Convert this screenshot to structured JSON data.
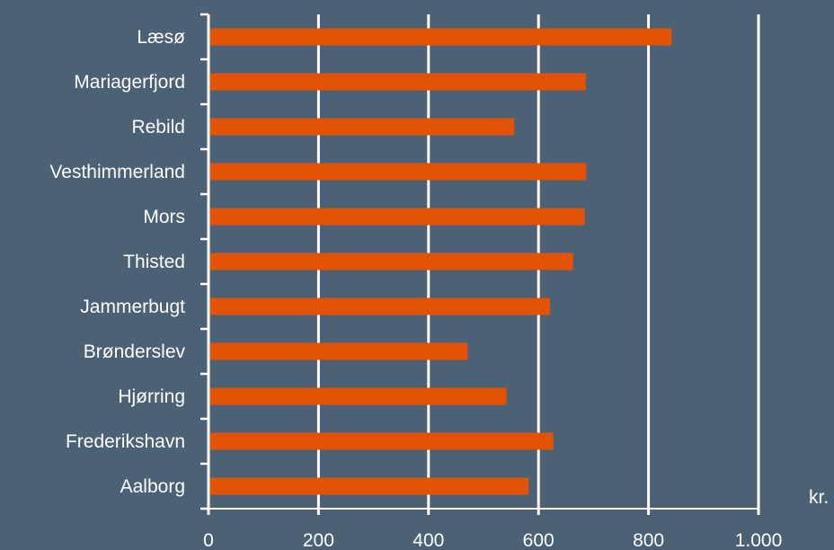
{
  "chart_data": {
    "type": "bar",
    "orientation": "horizontal",
    "categories": [
      "Læsø",
      "Mariagerfjord",
      "Rebild",
      "Vesthimmerland",
      "Mors",
      "Thisted",
      "Jammerbugt",
      "Brønderslev",
      "Hjørring",
      "Frederikshavn",
      "Aalborg"
    ],
    "values": [
      842,
      686,
      556,
      687,
      684,
      663,
      621,
      471,
      542,
      627,
      582
    ],
    "xlim": [
      0,
      1000
    ],
    "x_ticks": [
      0,
      200,
      400,
      600,
      800,
      1000
    ],
    "x_tick_labels": [
      "0",
      "200",
      "400",
      "600",
      "800",
      "1.000"
    ],
    "x_unit": "kr.",
    "grid": "vertical",
    "bar_color": "#e35205",
    "background_color": "#4a6176",
    "text_color": "#ffffff"
  }
}
